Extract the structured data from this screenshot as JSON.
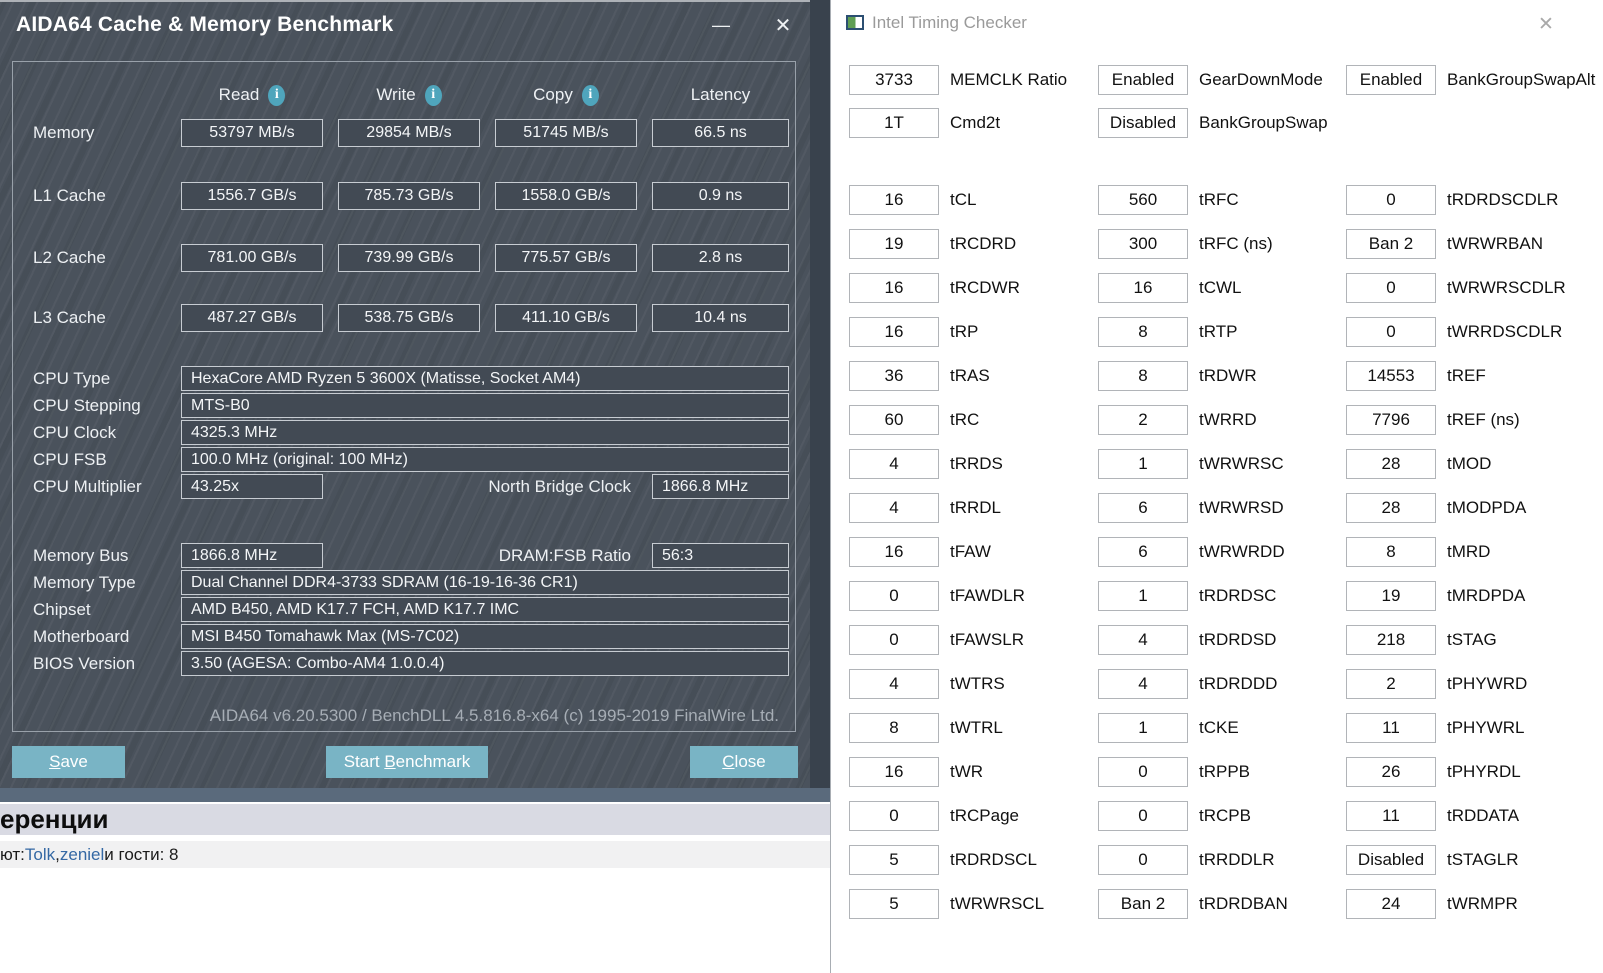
{
  "aida": {
    "title": "AIDA64 Cache & Memory Benchmark",
    "window_controls": {
      "minimize": "—",
      "close": "✕"
    },
    "columns": [
      "Read",
      "Write",
      "Copy",
      "Latency"
    ],
    "info_icon": "i",
    "bench_rows": [
      {
        "label": "Memory",
        "read": "53797 MB/s",
        "write": "29854 MB/s",
        "copy": "51745 MB/s",
        "latency": "66.5 ns"
      },
      {
        "label": "L1 Cache",
        "read": "1556.7 GB/s",
        "write": "785.73 GB/s",
        "copy": "1558.0 GB/s",
        "latency": "0.9 ns"
      },
      {
        "label": "L2 Cache",
        "read": "781.00 GB/s",
        "write": "739.99 GB/s",
        "copy": "775.57 GB/s",
        "latency": "2.8 ns"
      },
      {
        "label": "L3 Cache",
        "read": "487.27 GB/s",
        "write": "538.75 GB/s",
        "copy": "411.10 GB/s",
        "latency": "10.4 ns"
      }
    ],
    "cpu_rows": [
      {
        "label": "CPU Type",
        "value": "HexaCore AMD Ryzen 5 3600X  (Matisse, Socket AM4)"
      },
      {
        "label": "CPU Stepping",
        "value": "MTS-B0"
      },
      {
        "label": "CPU Clock",
        "value": "4325.3 MHz"
      },
      {
        "label": "CPU FSB",
        "value": "100.0 MHz  (original: 100 MHz)"
      }
    ],
    "cpu_multiplier": {
      "label": "CPU Multiplier",
      "value": "43.25x",
      "label2": "North Bridge Clock",
      "value2": "1866.8 MHz"
    },
    "memory_bus": {
      "label": "Memory Bus",
      "value": "1866.8 MHz",
      "label2": "DRAM:FSB Ratio",
      "value2": "56:3"
    },
    "mem_rows": [
      {
        "label": "Memory Type",
        "value": "Dual Channel DDR4-3733 SDRAM  (16-19-16-36 CR1)"
      },
      {
        "label": "Chipset",
        "value": "AMD B450, AMD K17.7 FCH, AMD K17.7 IMC"
      },
      {
        "label": "Motherboard",
        "value": "MSI B450 Tomahawk Max (MS-7C02)"
      },
      {
        "label": "BIOS Version",
        "value": "3.50  (AGESA: Combo-AM4 1.0.0.4)"
      }
    ],
    "footer": "AIDA64 v6.20.5300 / BenchDLL 4.5.816.8-x64  (c) 1995-2019 FinalWire Ltd.",
    "buttons": {
      "save": {
        "pre": "",
        "key": "S",
        "post": "ave"
      },
      "start": {
        "pre": "Start ",
        "key": "B",
        "post": "enchmark"
      },
      "close": {
        "pre": "",
        "key": "C",
        "post": "lose"
      }
    },
    "colors": {
      "window_bg": "#4a525c",
      "button_accent": "#79b4c5",
      "box_border": "#c7ccd2"
    }
  },
  "itc": {
    "title": "Intel Timing Checker",
    "close": "✕",
    "top_fields": [
      {
        "value": "3733",
        "label": "MEMCLK Ratio"
      },
      {
        "value": "1T",
        "label": "Cmd2t"
      },
      {
        "value": "Enabled",
        "label": "GearDownMode"
      },
      {
        "value": "Disabled",
        "label": "BankGroupSwap"
      },
      {
        "value": "Enabled",
        "label": "BankGroupSwapAlt"
      }
    ],
    "col1": [
      {
        "value": "16",
        "label": "tCL"
      },
      {
        "value": "19",
        "label": "tRCDRD"
      },
      {
        "value": "16",
        "label": "tRCDWR"
      },
      {
        "value": "16",
        "label": "tRP"
      },
      {
        "value": "36",
        "label": "tRAS"
      },
      {
        "value": "60",
        "label": "tRC"
      },
      {
        "value": "4",
        "label": "tRRDS"
      },
      {
        "value": "4",
        "label": "tRRDL"
      },
      {
        "value": "16",
        "label": "tFAW"
      },
      {
        "value": "0",
        "label": "tFAWDLR"
      },
      {
        "value": "0",
        "label": "tFAWSLR"
      },
      {
        "value": "4",
        "label": "tWTRS"
      },
      {
        "value": "8",
        "label": "tWTRL"
      },
      {
        "value": "16",
        "label": "tWR"
      },
      {
        "value": "0",
        "label": "tRCPage"
      },
      {
        "value": "5",
        "label": "tRDRDSCL"
      },
      {
        "value": "5",
        "label": "tWRWRSCL"
      }
    ],
    "col2": [
      {
        "value": "560",
        "label": "tRFC"
      },
      {
        "value": "300",
        "label": "tRFC (ns)"
      },
      {
        "value": "16",
        "label": "tCWL"
      },
      {
        "value": "8",
        "label": "tRTP"
      },
      {
        "value": "8",
        "label": "tRDWR"
      },
      {
        "value": "2",
        "label": "tWRRD"
      },
      {
        "value": "1",
        "label": "tWRWRSC"
      },
      {
        "value": "6",
        "label": "tWRWRSD"
      },
      {
        "value": "6",
        "label": "tWRWRDD"
      },
      {
        "value": "1",
        "label": "tRDRDSC"
      },
      {
        "value": "4",
        "label": "tRDRDSD"
      },
      {
        "value": "4",
        "label": "tRDRDDD"
      },
      {
        "value": "1",
        "label": "tCKE"
      },
      {
        "value": "0",
        "label": "tRPPB"
      },
      {
        "value": "0",
        "label": "tRCPB"
      },
      {
        "value": "0",
        "label": "tRRDDLR"
      },
      {
        "value": "Ban 2",
        "label": "tRDRDBAN"
      }
    ],
    "col3": [
      {
        "value": "0",
        "label": "tRDRDSCDLR"
      },
      {
        "value": "Ban 2",
        "label": "tWRWRBAN"
      },
      {
        "value": "0",
        "label": "tWRWRSCDLR"
      },
      {
        "value": "0",
        "label": "tWRRDSCDLR"
      },
      {
        "value": "14553",
        "label": "tREF"
      },
      {
        "value": "7796",
        "label": "tREF (ns)"
      },
      {
        "value": "28",
        "label": "tMOD"
      },
      {
        "value": "28",
        "label": "tMODPDA"
      },
      {
        "value": "8",
        "label": "tMRD"
      },
      {
        "value": "19",
        "label": "tMRDPDA"
      },
      {
        "value": "218",
        "label": "tSTAG"
      },
      {
        "value": "2",
        "label": "tPHYWRD"
      },
      {
        "value": "11",
        "label": "tPHYWRL"
      },
      {
        "value": "26",
        "label": "tPHYRDL"
      },
      {
        "value": "11",
        "label": "tRDDATA"
      },
      {
        "value": "Disabled",
        "label": "tSTAGLR"
      },
      {
        "value": "24",
        "label": "tWRMPR"
      }
    ]
  },
  "page_behind": {
    "heading_fragment": "еренции",
    "users_prefix": "ют: ",
    "link1": "Tolk",
    "separator": ", ",
    "link2": "zeniel",
    "users_suffix": " и гости: 8",
    "link_color": "#3468a4"
  }
}
